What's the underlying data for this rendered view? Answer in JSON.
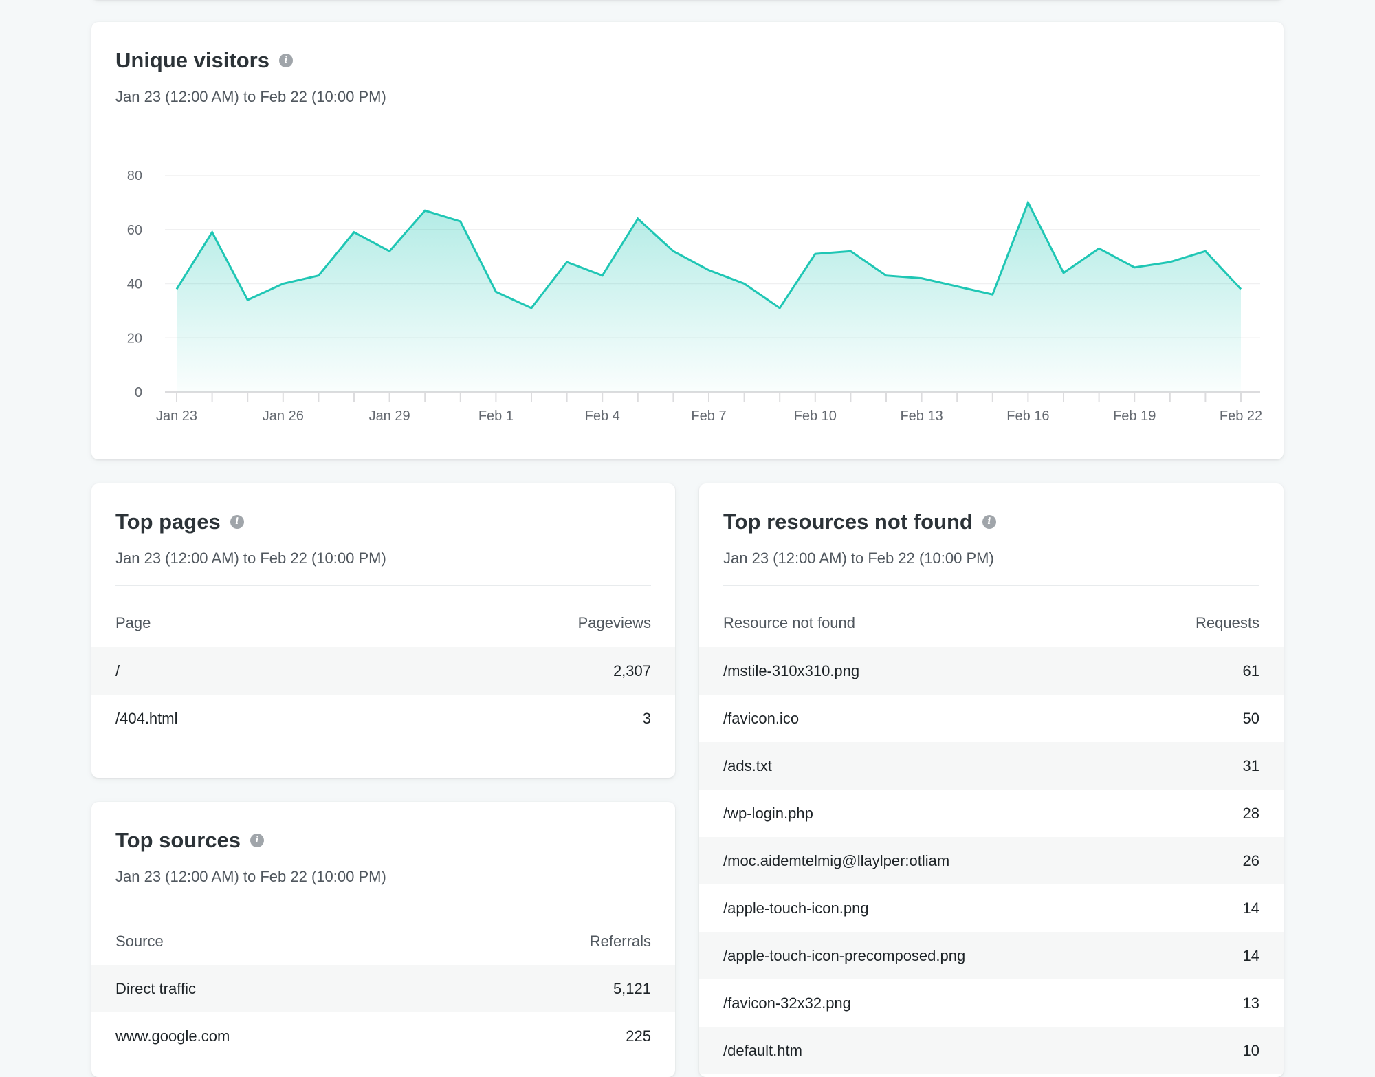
{
  "colors": {
    "accent": "#1fc6b4",
    "accent_fill": "#b4ece4",
    "background": "#f5f8f9",
    "card": "#ffffff"
  },
  "visitors": {
    "title": "Unique visitors",
    "subtitle": "Jan 23 (12:00 AM) to Feb 22 (10:00 PM)",
    "info_icon": "info-icon"
  },
  "chart_data": {
    "type": "area",
    "title": "Unique visitors",
    "xlabel": "",
    "ylabel": "",
    "ylim": [
      0,
      80
    ],
    "yticks": [
      0,
      20,
      40,
      60,
      80
    ],
    "grid": true,
    "x": [
      "Jan 23",
      "Jan 24",
      "Jan 25",
      "Jan 26",
      "Jan 27",
      "Jan 28",
      "Jan 29",
      "Jan 30",
      "Jan 31",
      "Feb 1",
      "Feb 2",
      "Feb 3",
      "Feb 4",
      "Feb 5",
      "Feb 6",
      "Feb 7",
      "Feb 8",
      "Feb 9",
      "Feb 10",
      "Feb 11",
      "Feb 12",
      "Feb 13",
      "Feb 14",
      "Feb 15",
      "Feb 16",
      "Feb 17",
      "Feb 18",
      "Feb 19",
      "Feb 20",
      "Feb 21",
      "Feb 22"
    ],
    "xtick_labels": [
      "Jan 23",
      "",
      "",
      "Jan 26",
      "",
      "",
      "Jan 29",
      "",
      "",
      "Feb 1",
      "",
      "",
      "Feb 4",
      "",
      "",
      "Feb 7",
      "",
      "",
      "Feb 10",
      "",
      "",
      "Feb 13",
      "",
      "",
      "Feb 16",
      "",
      "",
      "Feb 19",
      "",
      "",
      "Feb 22"
    ],
    "values": [
      38,
      59,
      34,
      40,
      43,
      59,
      52,
      67,
      63,
      37,
      31,
      48,
      43,
      64,
      52,
      45,
      40,
      31,
      51,
      52,
      43,
      42,
      39,
      36,
      70,
      44,
      53,
      46,
      48,
      52,
      38
    ]
  },
  "top_pages": {
    "title": "Top pages",
    "subtitle": "Jan 23 (12:00 AM) to Feb 22 (10:00 PM)",
    "col1": "Page",
    "col2": "Pageviews",
    "rows": [
      {
        "name": "/",
        "value": "2,307"
      },
      {
        "name": "/404.html",
        "value": "3"
      }
    ]
  },
  "top_sources": {
    "title": "Top sources",
    "subtitle": "Jan 23 (12:00 AM) to Feb 22 (10:00 PM)",
    "col1": "Source",
    "col2": "Referrals",
    "rows": [
      {
        "name": "Direct traffic",
        "value": "5,121"
      },
      {
        "name": "www.google.com",
        "value": "225"
      }
    ]
  },
  "top_not_found": {
    "title": "Top resources not found",
    "subtitle": "Jan 23 (12:00 AM) to Feb 22 (10:00 PM)",
    "col1": "Resource not found",
    "col2": "Requests",
    "rows": [
      {
        "name": "/mstile-310x310.png",
        "value": "61"
      },
      {
        "name": "/favicon.ico",
        "value": "50"
      },
      {
        "name": "/ads.txt",
        "value": "31"
      },
      {
        "name": "/wp-login.php",
        "value": "28"
      },
      {
        "name": "/moc.aidemtelmig@llaylper:otliam",
        "value": "26"
      },
      {
        "name": "/apple-touch-icon.png",
        "value": "14"
      },
      {
        "name": "/apple-touch-icon-precomposed.png",
        "value": "14"
      },
      {
        "name": "/favicon-32x32.png",
        "value": "13"
      },
      {
        "name": "/default.htm",
        "value": "10"
      }
    ]
  }
}
